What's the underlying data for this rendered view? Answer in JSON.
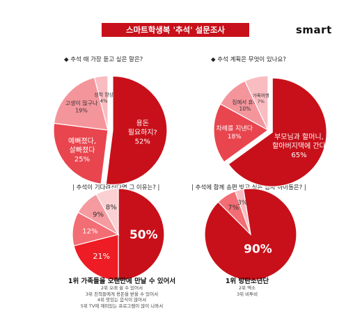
{
  "header": {
    "title": "스마트학생복 '추석' 설문조사",
    "logo": "smart"
  },
  "colors": {
    "accent": "#c8101a",
    "palette": [
      "#c8101a",
      "#e8454e",
      "#f27c85",
      "#f9b6bc",
      "#fcd9dc"
    ]
  },
  "chart_data": [
    {
      "type": "pie",
      "title": "◆ 추석 때 가장 듣고 싶은 말은?",
      "slices": [
        {
          "label": "용돈\n필요하지?",
          "value_label": "52%",
          "value": 52,
          "color": "#c8101a"
        },
        {
          "label": "예뻐졌다,\n살빠졌다",
          "value_label": "25%",
          "value": 25,
          "color": "#e8454e"
        },
        {
          "label": "고생이 많구나",
          "value_label": "19%",
          "value": 19,
          "color": "#f4959c"
        },
        {
          "label": "성적 향상",
          "value_label": "4%",
          "value": 4,
          "color": "#f9bcc1"
        }
      ]
    },
    {
      "type": "pie",
      "title": "◆ 추석 계획은 무엇이 있나요?",
      "slices": [
        {
          "label": "부모님과 할머니,\n할아버지댁에 간다",
          "value_label": "65%",
          "value": 65,
          "color": "#c8101a"
        },
        {
          "label": "차례를 지낸다",
          "value_label": "18%",
          "value": 18,
          "color": "#e8454e"
        },
        {
          "label": "집에서 휴식",
          "value_label": "10%",
          "value": 10,
          "color": "#f4959c"
        },
        {
          "label": "가족여행",
          "value_label": "7%",
          "value": 7,
          "color": "#f9bcc1"
        }
      ]
    },
    {
      "type": "pie",
      "title": "| 추석이 기다려진다면 그 이유는? |",
      "slices": [
        {
          "label": "",
          "value_label": "50%",
          "value": 50,
          "color": "#c8101a"
        },
        {
          "label": "",
          "value_label": "21%",
          "value": 21,
          "color": "#ee1c24"
        },
        {
          "label": "",
          "value_label": "12%",
          "value": 12,
          "color": "#f26d74"
        },
        {
          "label": "",
          "value_label": "9%",
          "value": 9,
          "color": "#f59ba0"
        },
        {
          "label": "",
          "value_label": "8%",
          "value": 8,
          "color": "#fad0d3"
        }
      ],
      "notes": {
        "head": "1위 가족들을 오랜만에 만날 수 있어서",
        "lines": [
          "2위 오래 쉴 수 있어서",
          "3위 친척들에게 용돈을 받을 수 있어서",
          "4위 맛있는 음식이 많아서",
          "5위 TV에 재미있는 프로그램이 많이 나와서"
        ]
      }
    },
    {
      "type": "pie",
      "title": "| 추석에 함께 송편 빚고 싶은 남자 아이돌은? |",
      "slices": [
        {
          "label": "",
          "value_label": "90%",
          "value": 90,
          "color": "#c8101a"
        },
        {
          "label": "",
          "value_label": "7%",
          "value": 7,
          "color": "#f26d74"
        },
        {
          "label": "",
          "value_label": "3%",
          "value": 3,
          "color": "#f9bcc1"
        }
      ],
      "notes": {
        "head": "1위 방탄소년단",
        "lines": [
          "2위 엑소",
          "3위 비투비"
        ]
      }
    }
  ]
}
